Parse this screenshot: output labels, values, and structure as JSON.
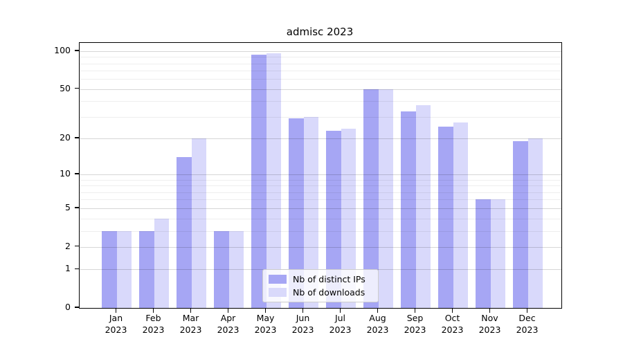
{
  "chart_data": {
    "type": "bar",
    "title": "admisc 2023",
    "categories": [
      "Jan 2023",
      "Feb 2023",
      "Mar 2023",
      "Apr 2023",
      "May 2023",
      "Jun 2023",
      "Jul 2023",
      "Aug 2023",
      "Sep 2023",
      "Oct 2023",
      "Nov 2023",
      "Dec 2023"
    ],
    "x_tick_line1": [
      "Jan",
      "Feb",
      "Mar",
      "Apr",
      "May",
      "Jun",
      "Jul",
      "Aug",
      "Sep",
      "Oct",
      "Nov",
      "Dec"
    ],
    "x_tick_line2": "2023",
    "series": [
      {
        "name": "Nb of distinct IPs",
        "color": "#a6a6f4",
        "values": [
          3,
          3,
          14,
          3,
          94,
          29,
          23,
          50,
          33,
          25,
          6,
          19
        ]
      },
      {
        "name": "Nb of downloads",
        "color": "#d9d9fb",
        "values": [
          3,
          4,
          20,
          3,
          96,
          30,
          24,
          50,
          37,
          27,
          6,
          20
        ]
      }
    ],
    "yscale": "log1p",
    "ylim": [
      0,
      116
    ],
    "yticks": [
      0,
      1,
      2,
      5,
      10,
      20,
      50,
      100
    ],
    "yticks_minor": [
      3,
      4,
      6,
      7,
      8,
      9,
      30,
      40,
      60,
      70,
      80,
      90
    ],
    "xlabel": "",
    "ylabel": "",
    "grid": true,
    "legend_position": "lower center",
    "spine_color": "#000000",
    "grid_major_color": "rgba(0,0,0,0.16)",
    "grid_minor_color": "rgba(0,0,0,0.065)"
  }
}
